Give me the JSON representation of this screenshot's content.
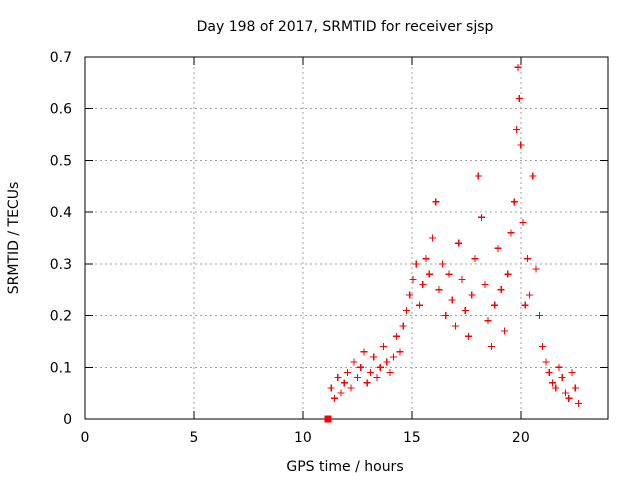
{
  "colors": {
    "background": "#ffffff",
    "axis": "#000000",
    "grid": "#a0a0a0",
    "series": "#ff0000"
  },
  "chart_data": {
    "type": "scatter",
    "title": "Day 198 of 2017, SRMTID for receiver sjsp",
    "xlabel": "GPS time / hours",
    "ylabel": "SRMTID / TECUs",
    "xlim": [
      0,
      24
    ],
    "ylim": [
      0,
      0.7
    ],
    "xticks": [
      0,
      5,
      10,
      15,
      20
    ],
    "yticks": [
      0,
      0.1,
      0.2,
      0.3,
      0.4,
      0.5,
      0.6,
      0.7
    ],
    "xtick_labels": [
      "0",
      "5",
      "10",
      "15",
      "20"
    ],
    "ytick_labels": [
      "0",
      "0.1",
      "0.2",
      "0.3",
      "0.4",
      "0.5",
      "0.6",
      "0.7"
    ],
    "grid": true,
    "legend": "none",
    "series": [
      {
        "name": "SRMTID",
        "marker": "plus",
        "points": [
          [
            11.15,
            0.0
          ],
          [
            11.3,
            0.06
          ],
          [
            11.45,
            0.04
          ],
          [
            11.6,
            0.08
          ],
          [
            11.75,
            0.05
          ],
          [
            11.9,
            0.07
          ],
          [
            12.05,
            0.09
          ],
          [
            12.2,
            0.06
          ],
          [
            12.35,
            0.11
          ],
          [
            12.5,
            0.08
          ],
          [
            12.65,
            0.1
          ],
          [
            12.8,
            0.13
          ],
          [
            12.95,
            0.07
          ],
          [
            13.1,
            0.09
          ],
          [
            13.25,
            0.12
          ],
          [
            13.4,
            0.08
          ],
          [
            13.55,
            0.1
          ],
          [
            13.7,
            0.14
          ],
          [
            13.85,
            0.11
          ],
          [
            14.0,
            0.09
          ],
          [
            14.15,
            0.12
          ],
          [
            14.3,
            0.16
          ],
          [
            14.45,
            0.13
          ],
          [
            14.6,
            0.18
          ],
          [
            14.75,
            0.21
          ],
          [
            14.9,
            0.24
          ],
          [
            15.05,
            0.27
          ],
          [
            15.2,
            0.3
          ],
          [
            15.35,
            0.22
          ],
          [
            15.5,
            0.26
          ],
          [
            15.65,
            0.31
          ],
          [
            15.8,
            0.28
          ],
          [
            15.95,
            0.35
          ],
          [
            16.1,
            0.42
          ],
          [
            16.25,
            0.25
          ],
          [
            16.4,
            0.3
          ],
          [
            16.55,
            0.2
          ],
          [
            16.7,
            0.28
          ],
          [
            16.85,
            0.23
          ],
          [
            17.0,
            0.18
          ],
          [
            17.15,
            0.34
          ],
          [
            17.3,
            0.27
          ],
          [
            17.45,
            0.21
          ],
          [
            17.6,
            0.16
          ],
          [
            17.75,
            0.24
          ],
          [
            17.9,
            0.31
          ],
          [
            18.05,
            0.47
          ],
          [
            18.2,
            0.39
          ],
          [
            18.35,
            0.26
          ],
          [
            18.5,
            0.19
          ],
          [
            18.65,
            0.14
          ],
          [
            18.8,
            0.22
          ],
          [
            18.95,
            0.33
          ],
          [
            19.1,
            0.25
          ],
          [
            19.25,
            0.17
          ],
          [
            19.4,
            0.28
          ],
          [
            19.55,
            0.36
          ],
          [
            19.7,
            0.42
          ],
          [
            19.8,
            0.56
          ],
          [
            19.87,
            0.68
          ],
          [
            19.93,
            0.62
          ],
          [
            20.0,
            0.53
          ],
          [
            20.1,
            0.38
          ],
          [
            20.2,
            0.22
          ],
          [
            20.3,
            0.31
          ],
          [
            20.4,
            0.24
          ],
          [
            20.55,
            0.47
          ],
          [
            20.7,
            0.29
          ],
          [
            20.85,
            0.2
          ],
          [
            21.0,
            0.14
          ],
          [
            21.15,
            0.11
          ],
          [
            21.3,
            0.09
          ],
          [
            21.45,
            0.07
          ],
          [
            21.6,
            0.06
          ],
          [
            21.75,
            0.1
          ],
          [
            21.9,
            0.08
          ],
          [
            22.05,
            0.05
          ],
          [
            22.2,
            0.04
          ],
          [
            22.35,
            0.09
          ],
          [
            22.5,
            0.06
          ],
          [
            22.65,
            0.03
          ]
        ]
      }
    ]
  }
}
